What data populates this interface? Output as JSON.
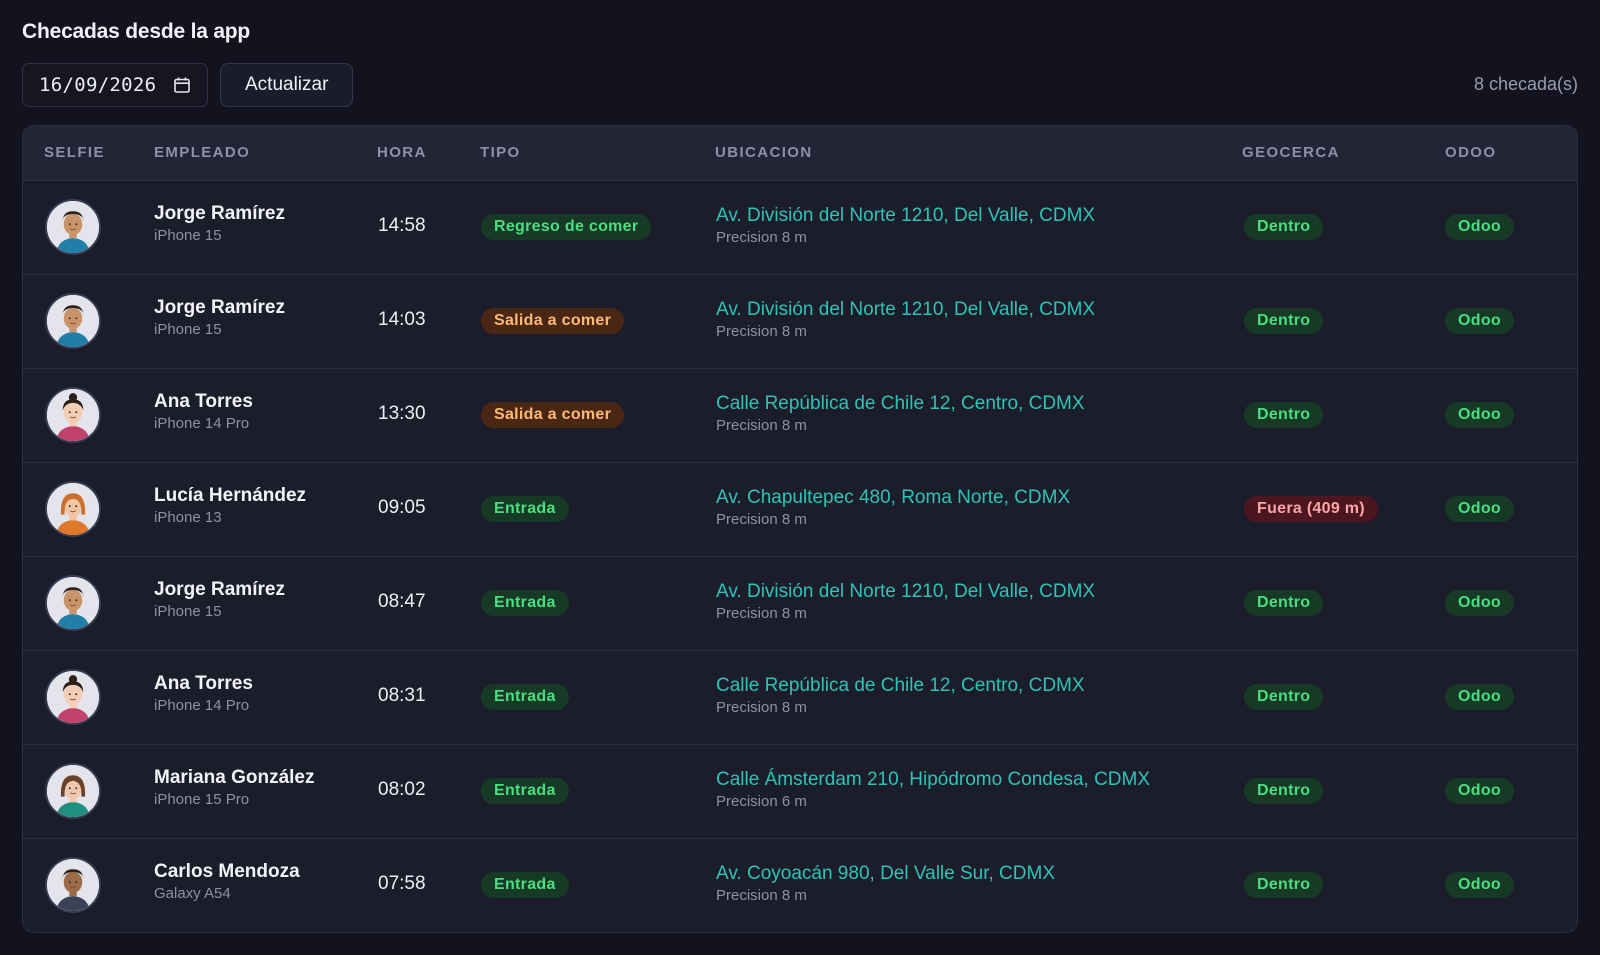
{
  "page": {
    "title": "Checadas desde la app"
  },
  "toolbar": {
    "date_value": "16/09/2026",
    "refresh_label": "Actualizar",
    "count_text": "8 checada(s)"
  },
  "table": {
    "headers": {
      "selfie": "SELFIE",
      "empleado": "EMPLEADO",
      "hora": "HORA",
      "tipo": "TIPO",
      "ubicacion": "UBICACION",
      "geocerca": "GEOCERCA",
      "odoo": "ODOO"
    },
    "rows": [
      {
        "avatar": "male-blue",
        "name": "Jorge Ramírez",
        "device": "iPhone 15",
        "hora": "14:58",
        "tipo": "Regreso de comer",
        "tipo_style": "green",
        "address": "Av. División del Norte 1210, Del Valle, CDMX",
        "precision": "Precision 8 m",
        "geocerca": "Dentro",
        "geo_style": "green",
        "odoo": "Odoo"
      },
      {
        "avatar": "male-blue",
        "name": "Jorge Ramírez",
        "device": "iPhone 15",
        "hora": "14:03",
        "tipo": "Salida a comer",
        "tipo_style": "orange",
        "address": "Av. División del Norte 1210, Del Valle, CDMX",
        "precision": "Precision 8 m",
        "geocerca": "Dentro",
        "geo_style": "green",
        "odoo": "Odoo"
      },
      {
        "avatar": "female-bun",
        "name": "Ana Torres",
        "device": "iPhone 14 Pro",
        "hora": "13:30",
        "tipo": "Salida a comer",
        "tipo_style": "orange",
        "address": "Calle República de Chile 12, Centro, CDMX",
        "precision": "Precision 8 m",
        "geocerca": "Dentro",
        "geo_style": "green",
        "odoo": "Odoo"
      },
      {
        "avatar": "female-orange",
        "name": "Lucía Hernández",
        "device": "iPhone 13",
        "hora": "09:05",
        "tipo": "Entrada",
        "tipo_style": "green",
        "address": "Av. Chapultepec 480, Roma Norte, CDMX",
        "precision": "Precision 8 m",
        "geocerca": "Fuera (409 m)",
        "geo_style": "red",
        "odoo": "Odoo"
      },
      {
        "avatar": "male-blue",
        "name": "Jorge Ramírez",
        "device": "iPhone 15",
        "hora": "08:47",
        "tipo": "Entrada",
        "tipo_style": "green",
        "address": "Av. División del Norte 1210, Del Valle, CDMX",
        "precision": "Precision 8 m",
        "geocerca": "Dentro",
        "geo_style": "green",
        "odoo": "Odoo"
      },
      {
        "avatar": "female-bun",
        "name": "Ana Torres",
        "device": "iPhone 14 Pro",
        "hora": "08:31",
        "tipo": "Entrada",
        "tipo_style": "green",
        "address": "Calle República de Chile 12, Centro, CDMX",
        "precision": "Precision 8 m",
        "geocerca": "Dentro",
        "geo_style": "green",
        "odoo": "Odoo"
      },
      {
        "avatar": "female-teal",
        "name": "Mariana González",
        "device": "iPhone 15 Pro",
        "hora": "08:02",
        "tipo": "Entrada",
        "tipo_style": "green",
        "address": "Calle Ámsterdam 210, Hipódromo Condesa, CDMX",
        "precision": "Precision 6 m",
        "geocerca": "Dentro",
        "geo_style": "green",
        "odoo": "Odoo"
      },
      {
        "avatar": "male-dark",
        "name": "Carlos Mendoza",
        "device": "Galaxy A54",
        "hora": "07:58",
        "tipo": "Entrada",
        "tipo_style": "green",
        "address": "Av. Coyoacán 980, Del Valle Sur, CDMX",
        "precision": "Precision 8 m",
        "geocerca": "Dentro",
        "geo_style": "green",
        "odoo": "Odoo"
      }
    ]
  },
  "colors": {
    "background": "#131320",
    "card": "#1c1d2b",
    "address_link": "#2cc4b4",
    "badge_green_text": "#4ade80",
    "badge_orange_text": "#fdba74",
    "badge_red_text": "#fca5a5"
  }
}
